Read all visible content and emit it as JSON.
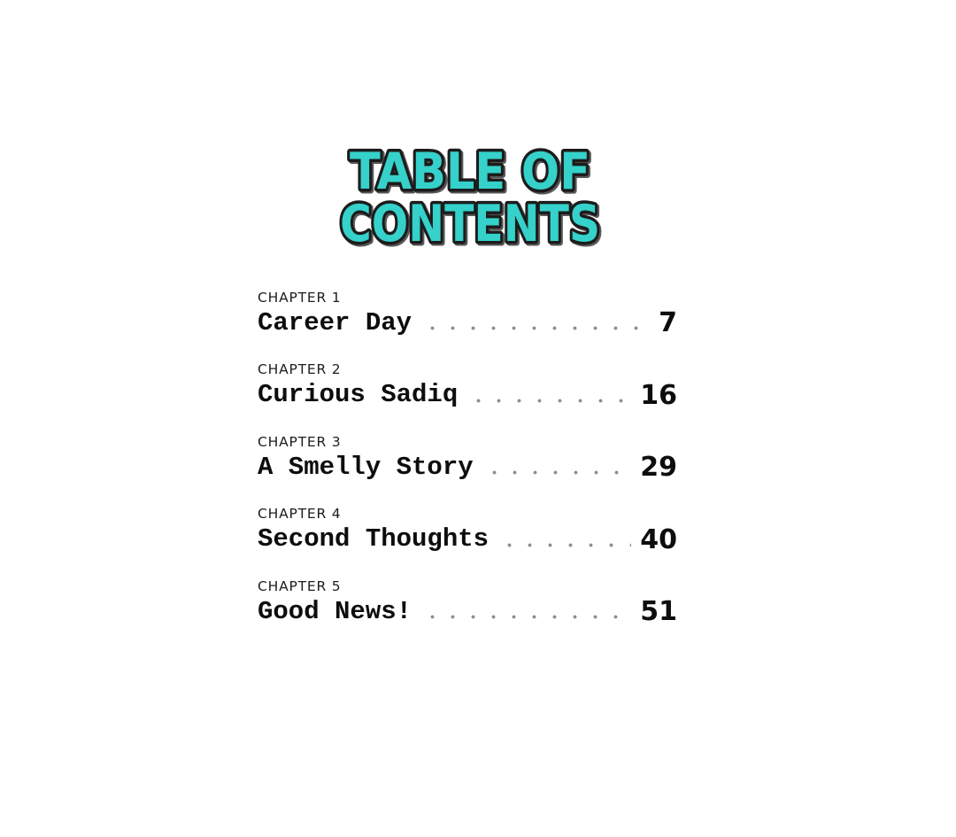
{
  "page": {
    "background_color": "#ffffff",
    "title": {
      "line1": "TABLE OF",
      "line2": "CONTENTS",
      "fill_color": "#35d1ca",
      "outline_color": "#1c1c1c"
    },
    "toc": {
      "entries": [
        {
          "chapter": "CHAPTER 1",
          "title": "Career Day",
          "page": "7"
        },
        {
          "chapter": "CHAPTER 2",
          "title": "Curious Sadiq",
          "page": "16"
        },
        {
          "chapter": "CHAPTER 3",
          "title": "A Smelly Story",
          "page": "29"
        },
        {
          "chapter": "CHAPTER 4",
          "title": "Second Thoughts",
          "page": "40"
        },
        {
          "chapter": "CHAPTER 5",
          "title": "Good News!",
          "page": "51"
        }
      ]
    }
  }
}
